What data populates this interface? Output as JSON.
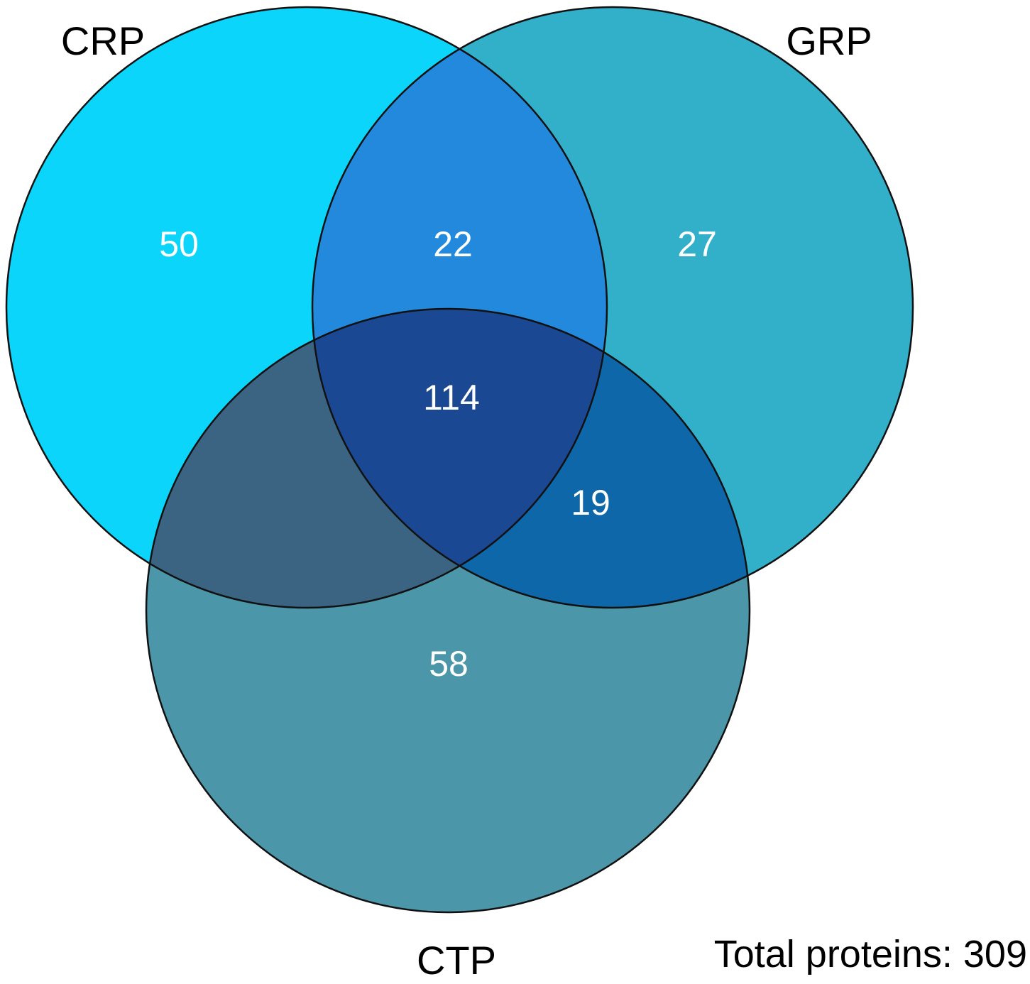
{
  "sets": [
    {
      "id": "crp",
      "label": "CRP",
      "color": "#0bd5fa"
    },
    {
      "id": "grp",
      "label": "GRP",
      "color": "#33b0c9"
    },
    {
      "id": "ctp",
      "label": "CTP",
      "color": "#4b96a8"
    }
  ],
  "regions": {
    "crp_only": "50",
    "crp_grp": "22",
    "grp_only": "27",
    "all_three": "114",
    "grp_ctp": "19",
    "crp_ctp": "",
    "ctp_only": "58"
  },
  "region_colors": {
    "crp_only": "#0bd5fa",
    "grp_only": "#33b0c9",
    "ctp_only": "#4b96a8",
    "crp_grp": "#2289dc",
    "crp_ctp": "#3a6482",
    "grp_ctp": "#0e67a8",
    "all_three": "#1b4892"
  },
  "total": "Total proteins: 309"
}
